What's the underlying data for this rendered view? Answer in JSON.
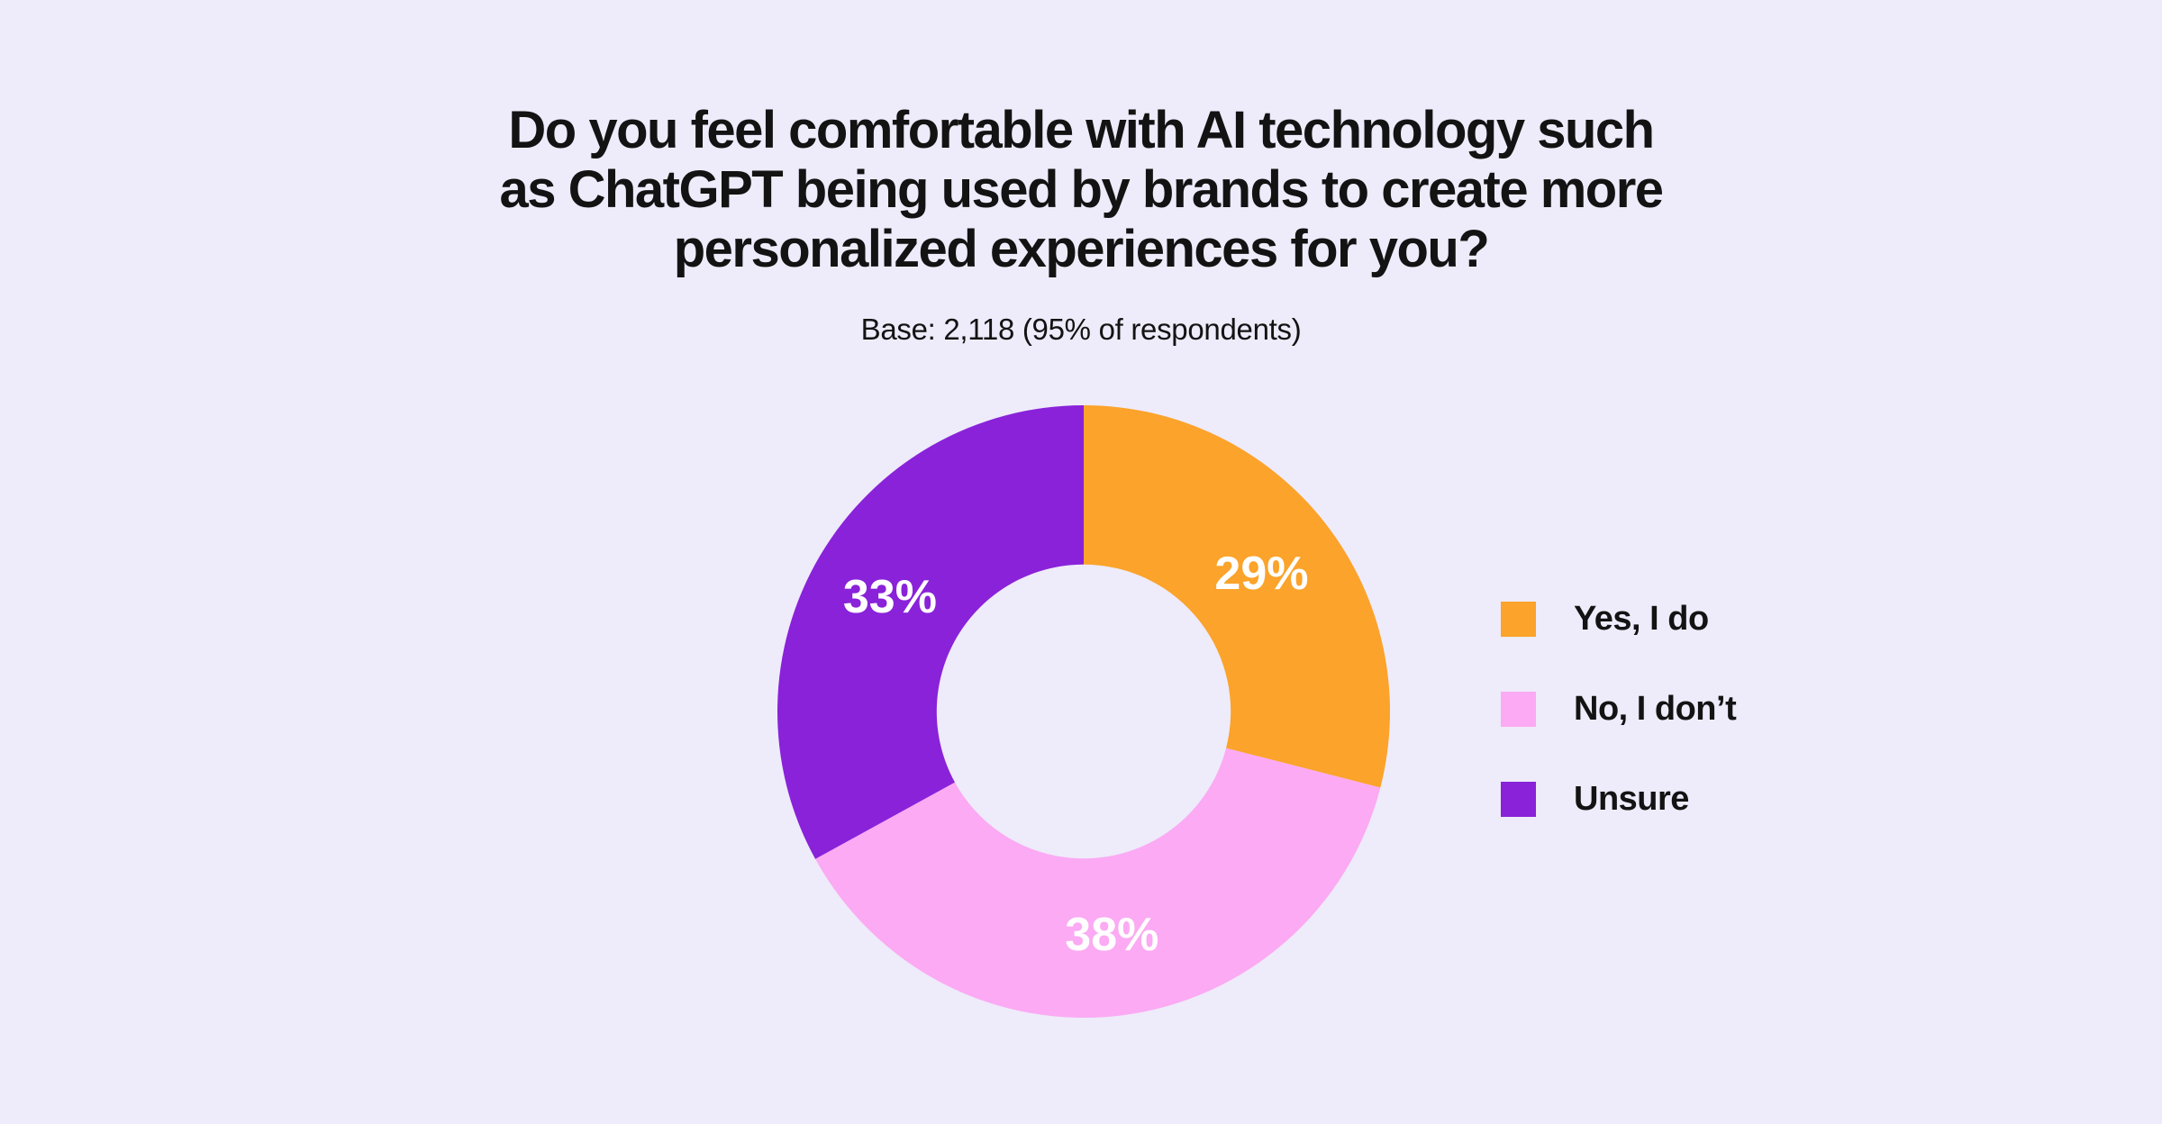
{
  "page": {
    "background_color": "#EEEBFA",
    "text_color": "#131313"
  },
  "title": {
    "full_text": "Do you feel comfortable with AI technology such as ChatGPT being used by brands to create more personalized experiences for you?",
    "lines": [
      "Do you feel comfortable with AI technology such",
      "as ChatGPT being used by brands to create more",
      "personalized experiences for you?"
    ]
  },
  "subtitle": "Base: 2,118 (95% of respondents)",
  "chart_data": {
    "type": "pie",
    "style": "donut",
    "title": "Do you feel comfortable with AI technology such as ChatGPT being used by brands to create more personalized experiences for you?",
    "subtitle": "Base: 2,118 (95% of respondents)",
    "categories": [
      "Yes, I do",
      "No, I don’t",
      "Unsure"
    ],
    "values": [
      29,
      38,
      33
    ],
    "labels": [
      "29%",
      "38%",
      "33%"
    ],
    "colors": [
      "#FBA32A",
      "#FBAAF3",
      "#8922D9"
    ],
    "label_color": "#FFFFFF",
    "hole_color": "#EEEBFA",
    "start_angle_deg": 0,
    "direction": "clockwise",
    "inner_radius_ratio": 0.48,
    "label_radius_ratio": 0.735,
    "legend_position": "right"
  }
}
